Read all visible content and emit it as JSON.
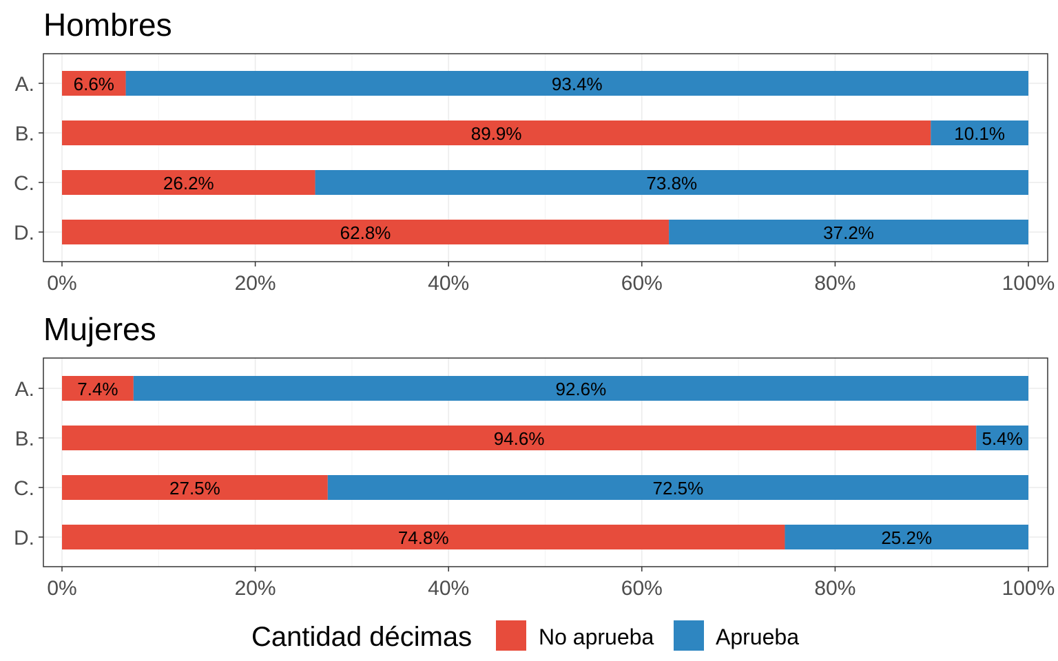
{
  "chart_data": [
    {
      "type": "bar",
      "orientation": "horizontal",
      "stacked": true,
      "title": "Hombres",
      "categories": [
        "A.",
        "B.",
        "C.",
        "D."
      ],
      "series": [
        {
          "name": "No aprueba",
          "values": [
            6.6,
            89.9,
            26.2,
            62.8
          ],
          "labels": [
            "6.6%",
            "89.9%",
            "26.2%",
            "62.8%"
          ]
        },
        {
          "name": "Aprueba",
          "values": [
            93.4,
            10.1,
            73.8,
            37.2
          ],
          "labels": [
            "93.4%",
            "10.1%",
            "73.8%",
            "37.2%"
          ]
        }
      ],
      "xlim": [
        0,
        100
      ],
      "xticks": [
        0,
        20,
        40,
        60,
        80,
        100
      ],
      "xtick_labels": [
        "0%",
        "20%",
        "40%",
        "60%",
        "80%",
        "100%"
      ],
      "grid": true
    },
    {
      "type": "bar",
      "orientation": "horizontal",
      "stacked": true,
      "title": "Mujeres",
      "categories": [
        "A.",
        "B.",
        "C.",
        "D."
      ],
      "series": [
        {
          "name": "No aprueba",
          "values": [
            7.4,
            94.6,
            27.5,
            74.8
          ],
          "labels": [
            "7.4%",
            "94.6%",
            "27.5%",
            "74.8%"
          ]
        },
        {
          "name": "Aprueba",
          "values": [
            92.6,
            5.4,
            72.5,
            25.2
          ],
          "labels": [
            "92.6%",
            "5.4%",
            "72.5%",
            "25.2%"
          ]
        }
      ],
      "xlim": [
        0,
        100
      ],
      "xticks": [
        0,
        20,
        40,
        60,
        80,
        100
      ],
      "xtick_labels": [
        "0%",
        "20%",
        "40%",
        "60%",
        "80%",
        "100%"
      ],
      "grid": true
    }
  ],
  "legend": {
    "title": "Cantidad décimas",
    "position": "bottom",
    "items": [
      {
        "label": "No aprueba",
        "color": "#E74C3C"
      },
      {
        "label": "Aprueba",
        "color": "#2E86C1"
      }
    ]
  },
  "colors": {
    "no_aprueba": "#E74C3C",
    "aprueba": "#2E86C1",
    "grid": "#EBEBEB",
    "panel_border": "#333333",
    "tick_text": "#4D4D4D"
  }
}
